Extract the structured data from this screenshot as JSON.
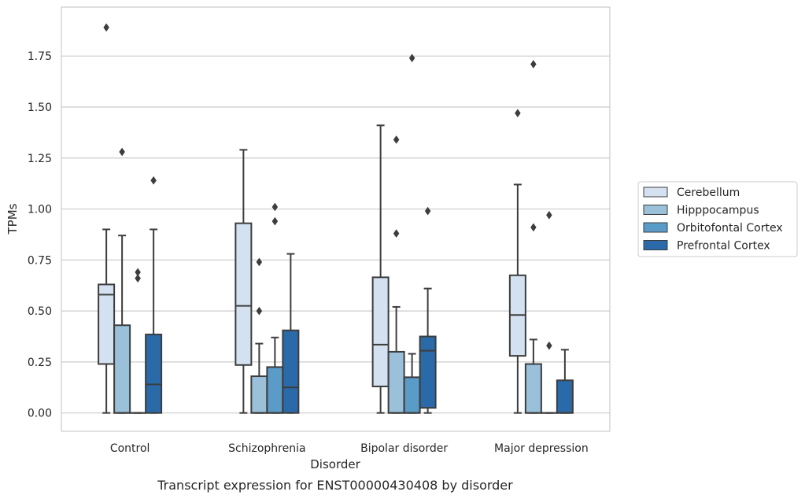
{
  "chart_data": {
    "type": "box",
    "caption": "Transcript expression for ENST00000430408 by disorder",
    "xlabel": "Disorder",
    "ylabel": "TPMs",
    "ylim": [
      -0.09,
      1.99
    ],
    "yticks": [
      "0.00",
      "0.25",
      "0.50",
      "0.75",
      "1.00",
      "1.25",
      "1.50",
      "1.75"
    ],
    "grid": true,
    "legend_position": "right",
    "categories": [
      "Control",
      "Schizophrenia",
      "Bipolar disorder",
      "Major depression"
    ],
    "series": [
      {
        "name": "Cerebellum",
        "color": "#d3e1f0",
        "boxes": [
          {
            "min": 0.0,
            "q1": 0.24,
            "median": 0.58,
            "q3": 0.63,
            "max": 0.9,
            "outliers": [
              1.89
            ]
          },
          {
            "min": 0.0,
            "q1": 0.235,
            "median": 0.525,
            "q3": 0.93,
            "max": 1.29,
            "outliers": []
          },
          {
            "min": 0.0,
            "q1": 0.13,
            "median": 0.335,
            "q3": 0.665,
            "max": 1.41,
            "outliers": []
          },
          {
            "min": 0.0,
            "q1": 0.28,
            "median": 0.48,
            "q3": 0.675,
            "max": 1.12,
            "outliers": [
              1.47
            ]
          }
        ]
      },
      {
        "name": "Hipppocampus",
        "color": "#9ac0da",
        "boxes": [
          {
            "min": 0.0,
            "q1": 0.0,
            "median": 0.0,
            "q3": 0.43,
            "max": 0.87,
            "outliers": [
              1.28
            ]
          },
          {
            "min": 0.0,
            "q1": 0.0,
            "median": 0.0,
            "q3": 0.18,
            "max": 0.34,
            "outliers": [
              0.5,
              0.74
            ]
          },
          {
            "min": 0.0,
            "q1": 0.0,
            "median": 0.0,
            "q3": 0.3,
            "max": 0.52,
            "outliers": [
              0.88,
              1.34
            ]
          },
          {
            "min": 0.0,
            "q1": 0.0,
            "median": 0.0,
            "q3": 0.24,
            "max": 0.36,
            "outliers": [
              0.91,
              1.71
            ]
          }
        ]
      },
      {
        "name": "Orbitofontal Cortex",
        "color": "#5b9bc7",
        "boxes": [
          {
            "min": 0.0,
            "q1": 0.0,
            "median": 0.0,
            "q3": 0.0,
            "max": 0.0,
            "outliers": [
              0.66,
              0.69
            ]
          },
          {
            "min": 0.0,
            "q1": 0.0,
            "median": 0.0,
            "q3": 0.225,
            "max": 0.37,
            "outliers": [
              0.94,
              1.01
            ]
          },
          {
            "min": 0.0,
            "q1": 0.0,
            "median": 0.0,
            "q3": 0.175,
            "max": 0.29,
            "outliers": [
              1.74
            ]
          },
          {
            "min": 0.0,
            "q1": 0.0,
            "median": 0.0,
            "q3": 0.0,
            "max": 0.0,
            "outliers": [
              0.33,
              0.97
            ]
          }
        ]
      },
      {
        "name": "Prefrontal Cortex",
        "color": "#2a6aa9",
        "boxes": [
          {
            "min": 0.0,
            "q1": 0.0,
            "median": 0.14,
            "q3": 0.385,
            "max": 0.9,
            "outliers": [
              1.14
            ]
          },
          {
            "min": 0.0,
            "q1": 0.0,
            "median": 0.125,
            "q3": 0.405,
            "max": 0.78,
            "outliers": []
          },
          {
            "min": 0.0,
            "q1": 0.025,
            "median": 0.305,
            "q3": 0.375,
            "max": 0.61,
            "outliers": [
              0.99
            ]
          },
          {
            "min": 0.0,
            "q1": 0.0,
            "median": 0.0,
            "q3": 0.16,
            "max": 0.31,
            "outliers": []
          }
        ]
      }
    ]
  }
}
